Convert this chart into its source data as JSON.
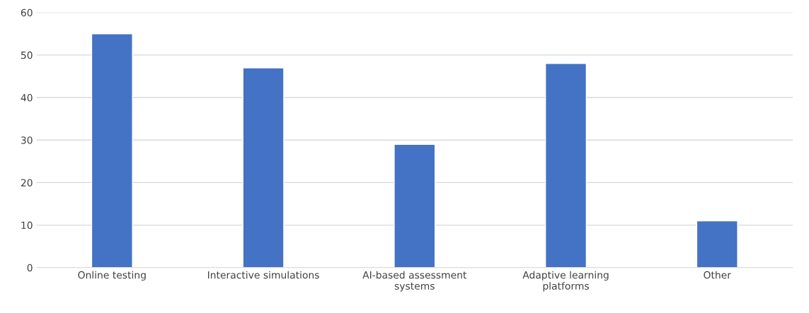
{
  "chart_data": {
    "type": "bar",
    "categories": [
      "Online testing",
      "Interactive simulations",
      "AI-based assessment\nsystems",
      "Adaptive learning\nplatforms",
      "Other"
    ],
    "values": [
      55,
      47,
      29,
      48,
      11
    ],
    "color": "#4472c4",
    "ylim": [
      0,
      60
    ],
    "yticks": [
      0,
      10,
      20,
      30,
      40,
      50,
      60
    ],
    "grid": "y",
    "legend": false
  }
}
